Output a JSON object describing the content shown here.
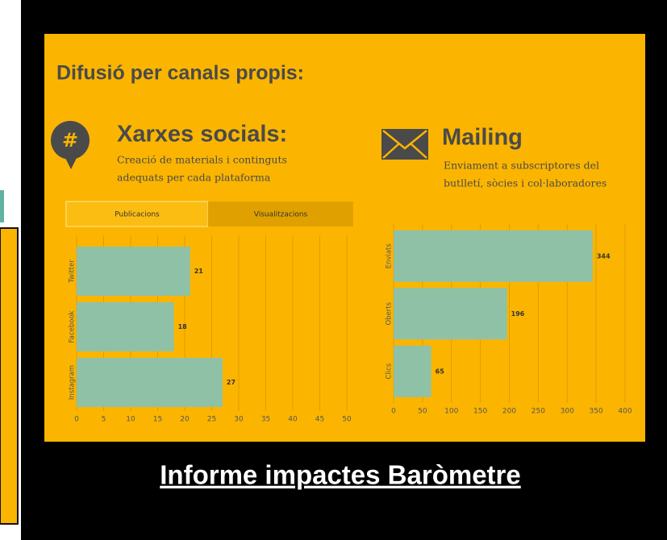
{
  "heading": "Difusió per canals propis:",
  "link": "Informe impactes Baròmetre",
  "chart_data": [
    {
      "type": "bar",
      "orientation": "horizontal",
      "title": "Xarxes socials:",
      "subtitle": [
        "Creació de materials i continguts",
        "adequats per cada plataforma"
      ],
      "tabs": [
        "Publicacions",
        "Visualitzacions"
      ],
      "categories": [
        "Twitter",
        "Facebook",
        "Instagram"
      ],
      "values": [
        21,
        18,
        27
      ],
      "color": "#8fc1a6",
      "xlim": [
        0,
        50
      ],
      "xticks": [
        0,
        5,
        10,
        15,
        20,
        25,
        30,
        35,
        40,
        45,
        50
      ],
      "grid": true
    },
    {
      "type": "bar",
      "orientation": "horizontal",
      "title": "Mailing",
      "subtitle": [
        "Enviament a subscriptores del",
        "butlletí, sòcies i col·laboradores"
      ],
      "categories": [
        "Enviats",
        "Oberts",
        "Clics"
      ],
      "values": [
        344,
        196,
        65
      ],
      "color": "#8fc1a6",
      "xlim": [
        0,
        400
      ],
      "xticks": [
        0,
        50,
        100,
        150,
        200,
        250,
        300,
        350,
        400
      ],
      "grid": true
    }
  ]
}
